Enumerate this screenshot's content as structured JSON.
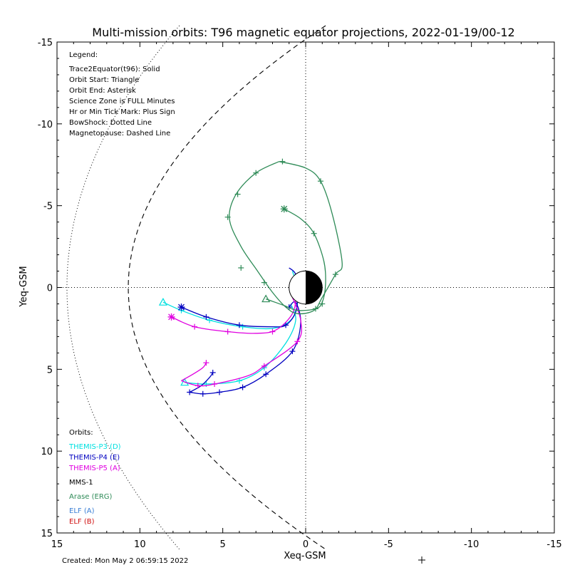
{
  "chart_data": {
    "type": "line",
    "title": "Multi-mission orbits: T96 magnetic equator projections, 2022-01-19/00-12",
    "xlabel": "Xeq-GSM",
    "ylabel": "Yeq-GSM",
    "xlim": [
      15,
      -15
    ],
    "ylim": [
      -15,
      15
    ],
    "xticks": [
      15,
      10,
      5,
      0,
      -5,
      -10,
      -15
    ],
    "yticks": [
      -15,
      -10,
      -5,
      0,
      5,
      10,
      15
    ],
    "legend_title": "Legend:",
    "legend_lines": [
      "Trace2Equator(t96): Solid",
      "Orbit Start: Triangle",
      "Orbit End: Asterisk",
      "Science Zone is FULL Minutes",
      "Hr or Min Tick Mark: Plus Sign",
      "BowShock: Dotted Line",
      "Magnetopause: Dashed Line"
    ],
    "orbits_title": "Orbits:",
    "orbits": [
      {
        "label": "THEMIS-P3 (D)",
        "color": "#00e0e0"
      },
      {
        "label": "THEMIS-P4 (E)",
        "color": "#0000c0"
      },
      {
        "label": "THEMIS-P5 (A)",
        "color": "#e000e0"
      },
      {
        "label": "MMS-1",
        "color": "#000000"
      },
      {
        "label": "Arase (ERG)",
        "color": "#2e8b57"
      },
      {
        "label": "ELF (A)",
        "color": "#3a7fd5"
      },
      {
        "label": "ELF (B)",
        "color": "#d01010"
      }
    ],
    "footer": "Created: Mon May  2 06:59:15 2022",
    "grid": "dotted axes at x=0 and y=0",
    "series": [
      {
        "name": "THEMIS-P3 (D)",
        "color": "#00e0e0",
        "arms": [
          {
            "points": [
              [
                8.6,
                0.9
              ],
              [
                7.5,
                1.4
              ],
              [
                5.8,
                2.0
              ],
              [
                3.8,
                2.4
              ],
              [
                2.0,
                2.5
              ],
              [
                0.9,
                2.0
              ],
              [
                0.5,
                1.0
              ],
              [
                0.5,
                0.0
              ],
              [
                0.8,
                -1.0
              ]
            ]
          },
          {
            "points": [
              [
                7.3,
                5.8
              ],
              [
                6.0,
                5.9
              ],
              [
                4.0,
                5.7
              ],
              [
                2.5,
                4.9
              ],
              [
                1.2,
                3.4
              ],
              [
                0.6,
                2.0
              ],
              [
                0.9,
                1.0
              ]
            ]
          }
        ],
        "start_triangles": [
          [
            8.6,
            0.9
          ],
          [
            7.3,
            5.8
          ]
        ],
        "end_asterisks": [],
        "ticks": [
          [
            7.5,
            1.4
          ],
          [
            5.8,
            2.0
          ],
          [
            3.8,
            2.4
          ],
          [
            6.0,
            5.9
          ],
          [
            4.0,
            5.7
          ],
          [
            2.5,
            4.9
          ]
        ]
      },
      {
        "name": "THEMIS-P4 (E)",
        "color": "#0000c0",
        "arms": [
          {
            "points": [
              [
                7.5,
                1.2
              ],
              [
                6.0,
                1.8
              ],
              [
                4.0,
                2.3
              ],
              [
                2.0,
                2.4
              ],
              [
                1.2,
                2.3
              ],
              [
                0.6,
                1.5
              ],
              [
                0.5,
                0.3
              ],
              [
                0.6,
                -0.8
              ],
              [
                1.0,
                -1.2
              ]
            ]
          },
          {
            "points": [
              [
                7.0,
                6.4
              ],
              [
                6.2,
                6.5
              ],
              [
                5.2,
                6.4
              ],
              [
                3.8,
                6.1
              ],
              [
                2.4,
                5.3
              ],
              [
                0.8,
                3.9
              ],
              [
                0.3,
                2.2
              ],
              [
                0.6,
                0.9
              ],
              [
                1.0,
                1.2
              ]
            ]
          },
          {
            "points": [
              [
                7.0,
                6.4
              ],
              [
                6.3,
                6.0
              ],
              [
                5.8,
                5.5
              ],
              [
                5.6,
                5.2
              ]
            ]
          }
        ],
        "start_triangles": [],
        "end_asterisks": [
          [
            7.5,
            1.2
          ]
        ],
        "ticks": [
          [
            6.0,
            1.8
          ],
          [
            4.0,
            2.3
          ],
          [
            1.2,
            2.3
          ],
          [
            7.0,
            6.4
          ],
          [
            6.2,
            6.5
          ],
          [
            5.2,
            6.4
          ],
          [
            3.8,
            6.1
          ],
          [
            2.4,
            5.3
          ],
          [
            0.8,
            3.9
          ],
          [
            1.0,
            1.2
          ],
          [
            5.6,
            5.2
          ]
        ]
      },
      {
        "name": "THEMIS-P5 (A)",
        "color": "#e000e0",
        "arms": [
          {
            "points": [
              [
                8.1,
                1.8
              ],
              [
                6.7,
                2.4
              ],
              [
                4.7,
                2.7
              ],
              [
                3.0,
                2.8
              ],
              [
                1.8,
                2.6
              ],
              [
                0.8,
                1.6
              ],
              [
                0.6,
                0.4
              ],
              [
                0.9,
                -0.3
              ]
            ]
          },
          {
            "points": [
              [
                7.5,
                5.7
              ],
              [
                6.5,
                6.0
              ],
              [
                5.5,
                5.9
              ],
              [
                3.5,
                5.4
              ],
              [
                2.5,
                4.8
              ],
              [
                0.5,
                3.3
              ],
              [
                0.3,
                2.0
              ],
              [
                0.8,
                0.6
              ]
            ]
          },
          {
            "points": [
              [
                7.5,
                5.7
              ],
              [
                6.8,
                5.3
              ],
              [
                6.2,
                4.9
              ],
              [
                6.0,
                4.6
              ]
            ]
          }
        ],
        "start_triangles": [],
        "end_asterisks": [
          [
            8.1,
            1.8
          ]
        ],
        "ticks": [
          [
            6.7,
            2.4
          ],
          [
            4.7,
            2.7
          ],
          [
            2.0,
            2.7
          ],
          [
            6.5,
            6.0
          ],
          [
            5.5,
            5.9
          ],
          [
            2.5,
            4.8
          ],
          [
            0.5,
            3.3
          ],
          [
            6.0,
            4.6
          ]
        ]
      },
      {
        "name": "Arase (ERG)",
        "color": "#2e8b57",
        "arms": [
          {
            "points": [
              [
                1.6,
                -7.7
              ],
              [
                0.0,
                -7.3
              ],
              [
                -0.9,
                -6.5
              ],
              [
                -1.6,
                -4.5
              ],
              [
                -2.2,
                -1.5
              ],
              [
                -1.8,
                -0.8
              ],
              [
                -1.0,
                0.6
              ],
              [
                -0.5,
                1.4
              ],
              [
                0.5,
                1.6
              ],
              [
                1.2,
                1.2
              ],
              [
                2.0,
                0.3
              ],
              [
                2.9,
                -1.0
              ],
              [
                3.9,
                -2.5
              ],
              [
                4.6,
                -4.2
              ],
              [
                4.2,
                -5.7
              ],
              [
                3.0,
                -7.0
              ],
              [
                1.6,
                -7.7
              ]
            ]
          },
          {
            "points": [
              [
                1.3,
                -4.8
              ],
              [
                0.3,
                -4.2
              ],
              [
                -0.5,
                -3.3
              ],
              [
                -1.1,
                -1.6
              ],
              [
                -1.2,
                -0.2
              ],
              [
                -1.0,
                0.9
              ],
              [
                -0.6,
                1.3
              ],
              [
                0.5,
                1.4
              ],
              [
                1.3,
                1.1
              ],
              [
                2.4,
                0.7
              ]
            ]
          }
        ],
        "start_triangles": [
          [
            2.4,
            0.7
          ]
        ],
        "end_asterisks": [
          [
            1.3,
            -4.8
          ]
        ],
        "ticks": [
          [
            1.4,
            -7.7
          ],
          [
            3.0,
            -7.0
          ],
          [
            4.1,
            -5.7
          ],
          [
            4.7,
            -4.3
          ],
          [
            3.9,
            -1.2
          ],
          [
            -0.9,
            -6.5
          ],
          [
            -1.8,
            -0.8
          ],
          [
            -0.5,
            -3.3
          ],
          [
            -0.6,
            1.3
          ],
          [
            2.5,
            -0.3
          ],
          [
            -1.0,
            1.0
          ]
        ]
      }
    ],
    "bow_shock": "dotted",
    "magnetopause": "dashed"
  }
}
